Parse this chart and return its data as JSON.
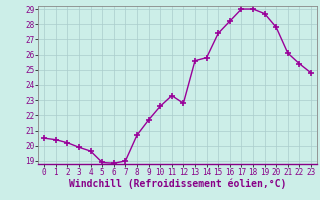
{
  "x": [
    0,
    1,
    2,
    3,
    4,
    5,
    6,
    7,
    8,
    9,
    10,
    11,
    12,
    13,
    14,
    15,
    16,
    17,
    18,
    19,
    20,
    21,
    22,
    23
  ],
  "y": [
    20.5,
    20.4,
    20.2,
    19.9,
    19.65,
    18.9,
    18.85,
    19.0,
    20.7,
    21.7,
    22.6,
    23.3,
    22.8,
    25.6,
    25.8,
    27.4,
    28.2,
    29.0,
    29.0,
    28.7,
    27.8,
    26.1,
    25.4,
    24.8
  ],
  "line_color": "#990099",
  "marker": "+",
  "marker_size": 5,
  "marker_lw": 1.2,
  "line_width": 1.0,
  "bg_color": "#cceee8",
  "grid_color": "#aacccc",
  "xlabel": "Windchill (Refroidissement éolien,°C)",
  "ylim": [
    19,
    29
  ],
  "xlim": [
    -0.5,
    23.5
  ],
  "yticks": [
    19,
    20,
    21,
    22,
    23,
    24,
    25,
    26,
    27,
    28,
    29
  ],
  "xticks": [
    0,
    1,
    2,
    3,
    4,
    5,
    6,
    7,
    8,
    9,
    10,
    11,
    12,
    13,
    14,
    15,
    16,
    17,
    18,
    19,
    20,
    21,
    22,
    23
  ],
  "tick_label_color": "#880088",
  "tick_fontsize": 5.5,
  "xlabel_fontsize": 7.0,
  "border_color": "#888888",
  "spine_color": "#888888"
}
